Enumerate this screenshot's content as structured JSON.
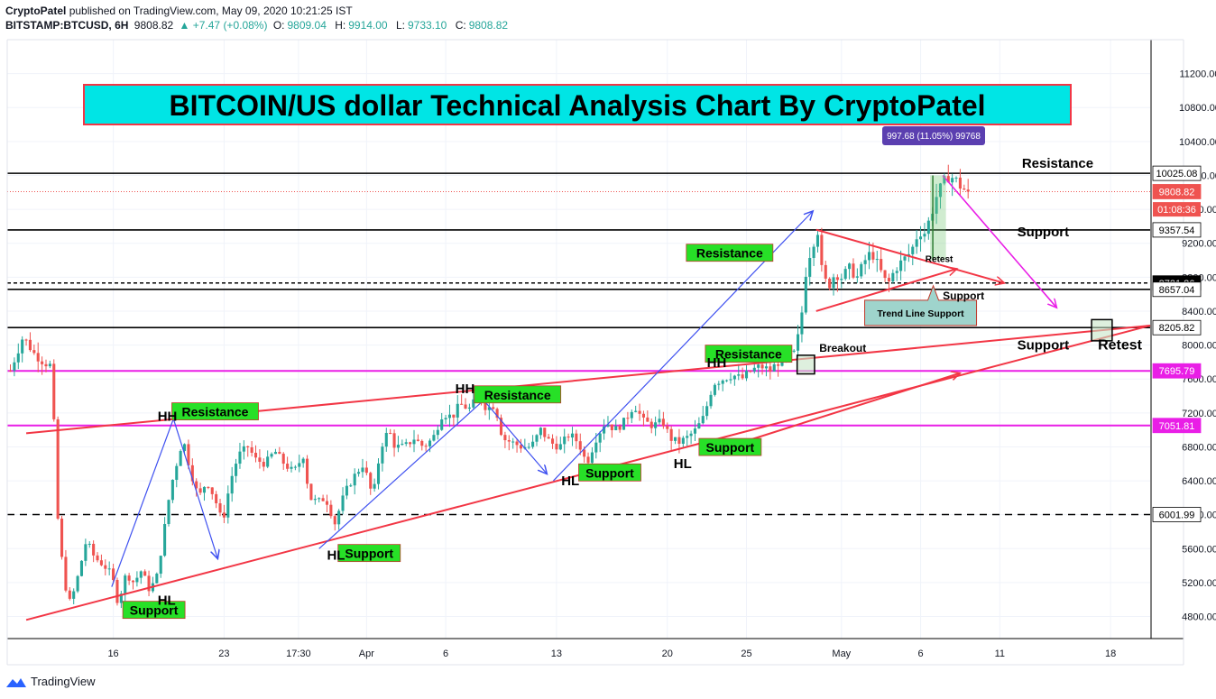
{
  "header": {
    "publisher": "CryptoPatel",
    "published_text": "published on TradingView.com, May 09, 2020 10:21:25 IST",
    "symbol": "BITSTAMP:BTCUSD, 6H",
    "last": "9808.82",
    "change": "▲ +7.47 (+0.08%)",
    "open_label": "O:",
    "open": "9809.04",
    "high_label": "H:",
    "high": "9914.00",
    "low_label": "L:",
    "low": "9733.10",
    "close_label": "C:",
    "close": "9808.82"
  },
  "footer": {
    "brand": "TradingView"
  },
  "title_banner": "BITCOIN/US dollar Technical Analysis Chart By CryptoPatel",
  "colors": {
    "up": "#26a69a",
    "down": "#ef5350",
    "trend": "#f23645",
    "magenta": "#e91ee6",
    "arrow_blue": "#3f51f0",
    "label_green": "#27e027",
    "banner_bg": "#00e5e5",
    "measure": "#5b3fb0"
  },
  "chart_data": {
    "type": "candlestick",
    "timeframe": "6H",
    "x_tick_labels": [
      "16",
      "23",
      "17:30",
      "Apr",
      "6",
      "13",
      "20",
      "25",
      "May",
      "6",
      "11",
      "18"
    ],
    "x_tick_days": [
      16,
      23,
      27.7,
      32,
      37,
      44,
      51,
      56,
      62,
      67,
      72,
      79
    ],
    "day_axis_note": "days counted from Mar 1, 2020",
    "y_ticks": [
      4800,
      5200,
      5600,
      6000,
      6400,
      6800,
      7200,
      7600,
      8000,
      8400,
      8800,
      9200,
      9600,
      10000,
      10400,
      10800,
      11200
    ],
    "y_tick_labels": [
      "4800.00",
      "5200.00",
      "5600.00",
      "6000.00",
      "6400.00",
      "6800.00",
      "7200.00",
      "7600.00",
      "8000.00",
      "8400.00",
      "8800.00",
      "9200.00",
      "9600.00",
      "10000.00",
      "10400.00",
      "10800.00",
      "11200.00"
    ],
    "ylim": [
      4540,
      11600
    ],
    "xlim": [
      9.3,
      81.5
    ],
    "price_path": [
      [
        9.5,
        7700
      ],
      [
        10.3,
        8100
      ],
      [
        11,
        7900
      ],
      [
        11.6,
        7800
      ],
      [
        12.1,
        7750
      ],
      [
        12.5,
        5950
      ],
      [
        12.9,
        5200
      ],
      [
        13.3,
        4950
      ],
      [
        13.8,
        5300
      ],
      [
        14.3,
        5700
      ],
      [
        14.8,
        5500
      ],
      [
        15.4,
        5400
      ],
      [
        15.9,
        5300
      ],
      [
        16.3,
        4950
      ],
      [
        16.8,
        5300
      ],
      [
        17.3,
        5200
      ],
      [
        17.8,
        5350
      ],
      [
        18.3,
        5100
      ],
      [
        18.8,
        5300
      ],
      [
        19.2,
        5800
      ],
      [
        19.6,
        6300
      ],
      [
        20,
        6600
      ],
      [
        20.4,
        6900
      ],
      [
        20.9,
        6500
      ],
      [
        21.4,
        6200
      ],
      [
        21.9,
        6400
      ],
      [
        22.4,
        6200
      ],
      [
        22.9,
        5900
      ],
      [
        23.4,
        6400
      ],
      [
        23.9,
        6700
      ],
      [
        24.5,
        6800
      ],
      [
        25,
        6650
      ],
      [
        25.6,
        6600
      ],
      [
        26.2,
        6750
      ],
      [
        26.8,
        6600
      ],
      [
        27.4,
        6500
      ],
      [
        28,
        6700
      ],
      [
        28.4,
        6200
      ],
      [
        28.9,
        6150
      ],
      [
        29.4,
        6200
      ],
      [
        30,
        5900
      ],
      [
        30.6,
        6250
      ],
      [
        31.2,
        6450
      ],
      [
        31.8,
        6600
      ],
      [
        32.4,
        6200
      ],
      [
        32.9,
        6800
      ],
      [
        33.4,
        7000
      ],
      [
        33.8,
        6800
      ],
      [
        34.4,
        6800
      ],
      [
        35,
        6900
      ],
      [
        35.6,
        6800
      ],
      [
        36.2,
        6900
      ],
      [
        36.8,
        7200
      ],
      [
        37.4,
        7150
      ],
      [
        37.9,
        7300
      ],
      [
        38.5,
        7250
      ],
      [
        39.1,
        7400
      ],
      [
        39.6,
        7250
      ],
      [
        40.1,
        7300
      ],
      [
        40.6,
        6900
      ],
      [
        41.2,
        6850
      ],
      [
        41.8,
        6800
      ],
      [
        42.4,
        6800
      ],
      [
        43,
        7000
      ],
      [
        43.6,
        6850
      ],
      [
        44.2,
        6800
      ],
      [
        44.8,
        6950
      ],
      [
        45.4,
        6850
      ],
      [
        45.9,
        6600
      ],
      [
        46.5,
        6900
      ],
      [
        47.1,
        7100
      ],
      [
        47.7,
        7000
      ],
      [
        48.3,
        7100
      ],
      [
        48.9,
        7300
      ],
      [
        49.5,
        7100
      ],
      [
        50.1,
        7050
      ],
      [
        50.7,
        7100
      ],
      [
        51.2,
        6900
      ],
      [
        51.7,
        6850
      ],
      [
        52.2,
        6900
      ],
      [
        52.8,
        7000
      ],
      [
        53.3,
        7150
      ],
      [
        53.9,
        7550
      ],
      [
        54.5,
        7600
      ],
      [
        55.1,
        7650
      ],
      [
        55.7,
        7600
      ],
      [
        56.3,
        7700
      ],
      [
        56.9,
        7750
      ],
      [
        57.5,
        7700
      ],
      [
        58,
        7800
      ],
      [
        58.5,
        7850
      ],
      [
        59,
        7900
      ],
      [
        59.4,
        8200
      ],
      [
        59.8,
        8950
      ],
      [
        60.2,
        9200
      ],
      [
        60.5,
        9350
      ],
      [
        60.8,
        8800
      ],
      [
        61.2,
        8700
      ],
      [
        61.6,
        8850
      ],
      [
        62,
        8800
      ],
      [
        62.5,
        8900
      ],
      [
        63,
        8800
      ],
      [
        63.5,
        9000
      ],
      [
        63.9,
        9100
      ],
      [
        64.4,
        8900
      ],
      [
        64.9,
        8700
      ],
      [
        65.4,
        8900
      ],
      [
        65.9,
        9000
      ],
      [
        66.4,
        9100
      ],
      [
        66.9,
        9350
      ],
      [
        67.2,
        9300
      ],
      [
        67.6,
        9500
      ],
      [
        68,
        9750
      ],
      [
        68.4,
        9900
      ],
      [
        68.8,
        10000
      ],
      [
        69.2,
        9950
      ],
      [
        69.6,
        9850
      ],
      [
        70,
        9808.82
      ]
    ],
    "horizontal_levels": [
      {
        "price": 10025.08,
        "label": "10025.08",
        "style": "solid",
        "color": "#000000",
        "label_bg": "#ffffff"
      },
      {
        "price": 9808.82,
        "label": "9808.82",
        "style": "dotted",
        "color": "#ef5350",
        "label_bg": "#ef5350"
      },
      {
        "price": 9357.54,
        "label": "9357.54",
        "style": "solid",
        "color": "#000000",
        "label_bg": "#ffffff"
      },
      {
        "price": 8731.86,
        "label": "8731.86",
        "style": "dashed",
        "color": "#000000",
        "label_bg": "#000000"
      },
      {
        "price": 8657.04,
        "label": "8657.04",
        "style": "solid",
        "color": "#000000",
        "label_bg": "#ffffff"
      },
      {
        "price": 8205.82,
        "label": "8205.82",
        "style": "solid",
        "color": "#000000",
        "label_bg": "#ffffff"
      },
      {
        "price": 7695.79,
        "label": "7695.79",
        "style": "solid",
        "color": "#e91ee6",
        "label_bg": "#e91ee6"
      },
      {
        "price": 7051.81,
        "label": "7051.81",
        "style": "solid",
        "color": "#e91ee6",
        "label_bg": "#e91ee6"
      },
      {
        "price": 6001.99,
        "label": "6001.99",
        "style": "dashed",
        "color": "#000000",
        "label_bg": "#ffffff"
      }
    ],
    "countdown": {
      "price": 9600,
      "text": "01:08:36"
    },
    "trend_lines": [
      {
        "x1": 10.5,
        "y1": 4760,
        "x2": 81.5,
        "y2": 8230,
        "color": "#f23645",
        "arrow": false
      },
      {
        "x1": 10.5,
        "y1": 6960,
        "x2": 81.5,
        "y2": 8230,
        "color": "#f23645",
        "arrow": false
      },
      {
        "x1": 56,
        "y1": 6870,
        "x2": 69.5,
        "y2": 7670,
        "color": "#f23645",
        "arrow": true
      },
      {
        "x1": 60.4,
        "y1": 9360,
        "x2": 72.3,
        "y2": 8730,
        "color": "#f23645",
        "arrow": true
      },
      {
        "x1": 60.4,
        "y1": 8400,
        "x2": 69.3,
        "y2": 8900,
        "color": "#f23645",
        "arrow": true
      }
    ],
    "swing_arrows": [
      {
        "points": [
          [
            15.9,
            5150
          ],
          [
            19.8,
            7130
          ],
          [
            22.6,
            5480
          ]
        ],
        "color": "#3f51f0"
      },
      {
        "points": [
          [
            29,
            5600
          ],
          [
            39.4,
            7350
          ],
          [
            43.4,
            6480
          ]
        ],
        "color": "#3f51f0"
      },
      {
        "points": [
          [
            43.8,
            6400
          ],
          [
            60.2,
            9580
          ]
        ],
        "color": "#3f51f0"
      },
      {
        "points": [
          [
            68.4,
            10000
          ],
          [
            75.6,
            8440
          ]
        ],
        "color": "#e91ee6"
      }
    ],
    "labels": [
      {
        "text": "Resistance",
        "x": 19.7,
        "y": 7160,
        "style": "green"
      },
      {
        "text": "Resistance",
        "x": 38.8,
        "y": 7360,
        "style": "green"
      },
      {
        "text": "Resistance",
        "x": 52.2,
        "y": 9030,
        "style": "green"
      },
      {
        "text": "Resistance",
        "x": 53.4,
        "y": 7840,
        "style": "green"
      },
      {
        "text": "Support",
        "x": 16.6,
        "y": 4820,
        "style": "green"
      },
      {
        "text": "Support",
        "x": 30.2,
        "y": 5490,
        "style": "green"
      },
      {
        "text": "Support",
        "x": 45.4,
        "y": 6440,
        "style": "green"
      },
      {
        "text": "Support",
        "x": 53,
        "y": 6740,
        "style": "green"
      },
      {
        "text": "HH",
        "x": 18.8,
        "y": 7110,
        "style": "bold"
      },
      {
        "text": "HH",
        "x": 37.6,
        "y": 7430,
        "style": "bold"
      },
      {
        "text": "HH",
        "x": 53.5,
        "y": 7740,
        "style": "bold"
      },
      {
        "text": "HL",
        "x": 18.8,
        "y": 4940,
        "style": "bold"
      },
      {
        "text": "HL",
        "x": 29.5,
        "y": 5470,
        "style": "bold"
      },
      {
        "text": "HL",
        "x": 44.3,
        "y": 6350,
        "style": "bold"
      },
      {
        "text": "HL",
        "x": 51.4,
        "y": 6550,
        "style": "bold"
      },
      {
        "text": "Resistance",
        "x": 73.4,
        "y": 10090,
        "style": "bold"
      },
      {
        "text": "Support",
        "x": 73.1,
        "y": 9280,
        "style": "bold"
      },
      {
        "text": "Support",
        "x": 73.1,
        "y": 7950,
        "style": "bold"
      },
      {
        "text": "Retest",
        "x": 78.2,
        "y": 7950,
        "style": "bold-large"
      },
      {
        "text": "Breakout",
        "x": 60.6,
        "y": 7920,
        "style": "small"
      },
      {
        "text": "Retest",
        "x": 67.3,
        "y": 8980,
        "style": "tiny"
      },
      {
        "text": "Support",
        "x": 68.4,
        "y": 8540,
        "style": "small"
      }
    ],
    "callout": {
      "text": "Trend Line Support",
      "x": 67,
      "y": 8380
    },
    "measure": {
      "text": "997.68 (11.05%) 99768",
      "x1": 67.6,
      "x2": 68.6,
      "y1": 9000,
      "y2": 10000
    },
    "boxes": [
      {
        "x1": 59.2,
        "x2": 60.3,
        "y1": 7660,
        "y2": 7880
      },
      {
        "x1": 77.8,
        "x2": 79.1,
        "y1": 8050,
        "y2": 8300
      }
    ]
  }
}
